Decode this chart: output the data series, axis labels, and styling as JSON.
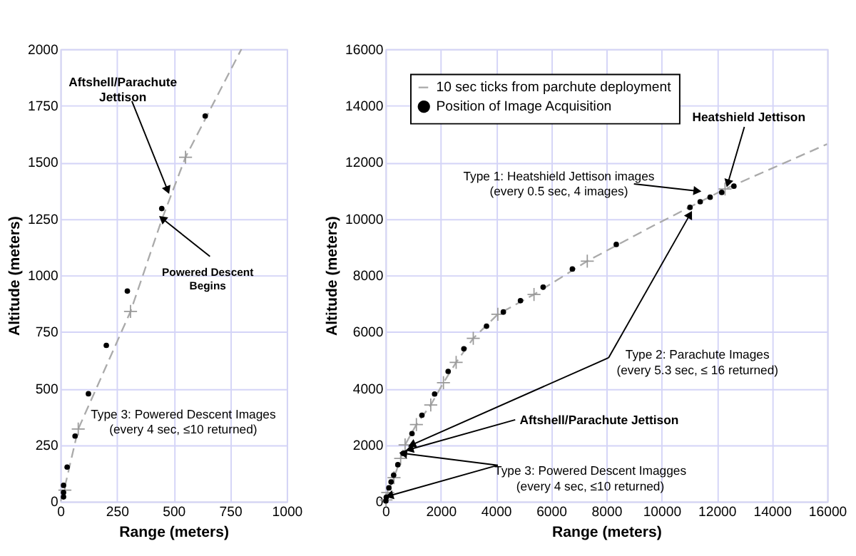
{
  "chart_data": [
    {
      "type": "line",
      "xlabel": "Range (meters)",
      "ylabel": "Altitude (meters)",
      "xlim": [
        0,
        1000
      ],
      "ylim": [
        0,
        2000
      ],
      "xticks": [
        0,
        250,
        500,
        750,
        1000
      ],
      "yticks": [
        0,
        250,
        500,
        750,
        1000,
        1250,
        1500,
        1750,
        2000
      ],
      "grid": true,
      "legend": false,
      "series": [
        {
          "color": "#aaaaaa",
          "line_style": "dashed",
          "marker": "none",
          "x": [
            0,
            14,
            79,
            310,
            450,
            553,
            800
          ],
          "values": [
            0,
            40,
            320,
            840,
            1251,
            1522,
            2000
          ]
        },
        {
          "type": "scatter",
          "color": "#999999",
          "marker": "cross",
          "x": [
            20,
            79,
            310,
            553
          ],
          "values": [
            50,
            320,
            840,
            1522
          ]
        },
        {
          "type": "scatter",
          "color": "#000000",
          "marker": "circle",
          "x": [
            14,
            14,
            14,
            30,
            65,
            124,
            203,
            296,
            448,
            640
          ],
          "values": [
            20,
            40,
            71,
            152,
            289,
            476,
            690,
            930,
            1295,
            1704
          ]
        }
      ],
      "annotations": [
        {
          "text": "Aftshell/Parachute\nJettison",
          "x": 474,
          "y": 1376
        },
        {
          "text": "Powered Descent\nBegins",
          "x": 450,
          "y": 1251
        },
        "Type 3: Powered Descent Images\n(every 4 sec, ≤10 returned)"
      ]
    },
    {
      "type": "line",
      "xlabel": "Range (meters)",
      "ylabel": "Altitude (meters)",
      "xlim": [
        0,
        16000
      ],
      "ylim": [
        0,
        16000
      ],
      "xticks": [
        0,
        2000,
        4000,
        6000,
        8000,
        10000,
        12000,
        14000,
        16000
      ],
      "yticks": [
        0,
        2000,
        4000,
        6000,
        8000,
        10000,
        12000,
        14000,
        16000
      ],
      "grid": true,
      "legend": "top left",
      "series": [
        {
          "name": "10 sec ticks from parchute deployment",
          "color": "#aaaaaa",
          "line_style": "dashed",
          "marker": "none",
          "x": [
            0,
            80,
            310,
            550,
            710,
            1120,
            1640,
            2100,
            2560,
            3180,
            4070,
            5380,
            7310,
            9500,
            12300,
            16000
          ],
          "values": [
            0,
            320,
            840,
            1520,
            2000,
            2720,
            3410,
            4200,
            4920,
            5770,
            6620,
            7320,
            8500,
            9650,
            11050,
            12640
          ]
        },
        {
          "type": "scatter",
          "color": "#999999",
          "marker": "cross",
          "x": [
            20,
            80,
            310,
            550,
            710,
            1120,
            1640,
            2100,
            2560,
            3180,
            4070,
            5380,
            7310,
            12300
          ],
          "values": [
            50,
            320,
            840,
            1520,
            2000,
            2720,
            3410,
            4200,
            4920,
            5770,
            6620,
            7320,
            8500,
            11050
          ]
        },
        {
          "name": "Position of Image Acquisition",
          "type": "scatter",
          "color": "#000000",
          "marker": "circle",
          "x": [
            14,
            30,
            124,
            203,
            296,
            448,
            640,
            960,
            1320,
            1780,
            2270,
            2840,
            3660,
            4270,
            4890,
            5710,
            6770,
            8360,
            11030,
            11400,
            11760,
            12180,
            12620
          ],
          "values": [
            20,
            150,
            480,
            690,
            930,
            1300,
            1700,
            2400,
            3050,
            3800,
            4600,
            5400,
            6200,
            6700,
            7100,
            7580,
            8220,
            9090,
            10400,
            10600,
            10760,
            10930,
            11150
          ]
        }
      ],
      "annotations": [
        {
          "text": "Heatshield Jettison",
          "x": 12400,
          "y": 11250
        },
        {
          "text": "Type 1: Heatshield Jettison images\n(every 0.5 sec,  4 images)",
          "x": 11300,
          "y": 10980
        },
        {
          "text": "Type 2: Parachute Images\n(every 5.3 sec, ≤ 16 returned)",
          "x": 11030,
          "y": 10150
        },
        {
          "text": "Aftshell/Parachute Jettison",
          "x": 870,
          "y": 1840
        },
        {
          "text": "Type 3: Powered Descent Imagges\n(every 4 sec, ≤10 returned)",
          "x": 640,
          "y": 1700
        }
      ]
    }
  ]
}
